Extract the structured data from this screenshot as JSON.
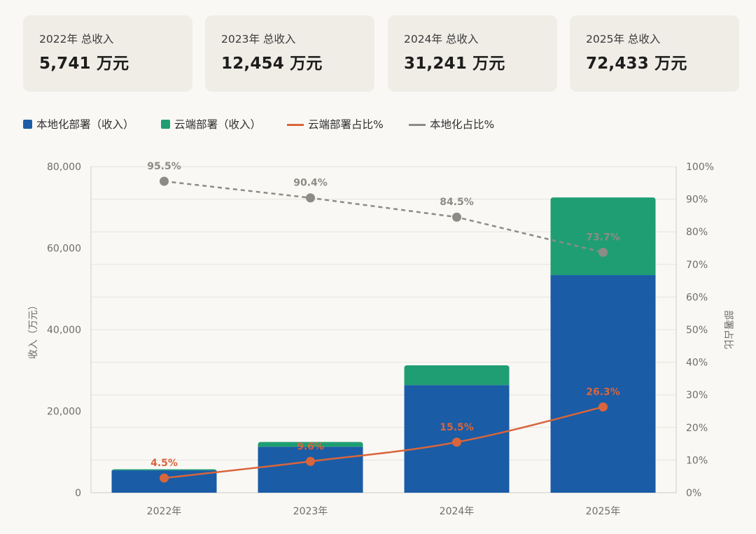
{
  "cards": [
    {
      "label": "2022年 总收入",
      "value": "5,741 万元"
    },
    {
      "label": "2023年 总收入",
      "value": "12,454 万元"
    },
    {
      "label": "2024年 总收入",
      "value": "31,241 万元"
    },
    {
      "label": "2025年 总收入",
      "value": "72,433 万元"
    }
  ],
  "legend": [
    {
      "label": "本地化部署（收入）",
      "kind": "swatch",
      "color": "#1a5ca6"
    },
    {
      "label": "云端部署（收入）",
      "kind": "swatch",
      "color": "#1f9e73"
    },
    {
      "label": "云端部署占比%",
      "kind": "line",
      "color": "#d9653b"
    },
    {
      "label": "本地化占比%",
      "kind": "line",
      "color": "#8c8c86"
    }
  ],
  "chart_data": {
    "type": "bar",
    "stacked": true,
    "categories": [
      "2022年",
      "2023年",
      "2024年",
      "2025年"
    ],
    "series": [
      {
        "name": "本地化部署（收入）",
        "axis": "left",
        "type": "bar",
        "color": "#1a5ca6",
        "values": [
          5483,
          11258,
          26399,
          53383
        ]
      },
      {
        "name": "云端部署（收入）",
        "axis": "left",
        "type": "bar",
        "color": "#1f9e73",
        "values": [
          258,
          1196,
          4842,
          19050
        ]
      },
      {
        "name": "云端部署占比%",
        "axis": "right",
        "type": "line",
        "style": "solid",
        "color": "#d9653b",
        "values": [
          4.5,
          9.6,
          15.5,
          26.3
        ],
        "labels": [
          "4.5%",
          "9.6%",
          "15.5%",
          "26.3%"
        ]
      },
      {
        "name": "本地化占比%",
        "axis": "right",
        "type": "line",
        "style": "dashed",
        "color": "#8c8c86",
        "values": [
          95.5,
          90.4,
          84.5,
          73.7
        ],
        "labels": [
          "95.5%",
          "90.4%",
          "84.5%",
          "73.7%"
        ]
      }
    ],
    "ylabel": "收入（万元）",
    "ylabel_right": "部署占比",
    "ylim": [
      0,
      80000
    ],
    "ylim_right": [
      0,
      100
    ],
    "yticks": [
      "0",
      "20,000",
      "40,000",
      "60,000",
      "80,000"
    ],
    "yticks_right": [
      "0%",
      "10%",
      "20%",
      "30%",
      "40%",
      "50%",
      "60%",
      "70%",
      "80%",
      "90%",
      "100%"
    ],
    "grid": true,
    "legend_position": "top-left"
  }
}
